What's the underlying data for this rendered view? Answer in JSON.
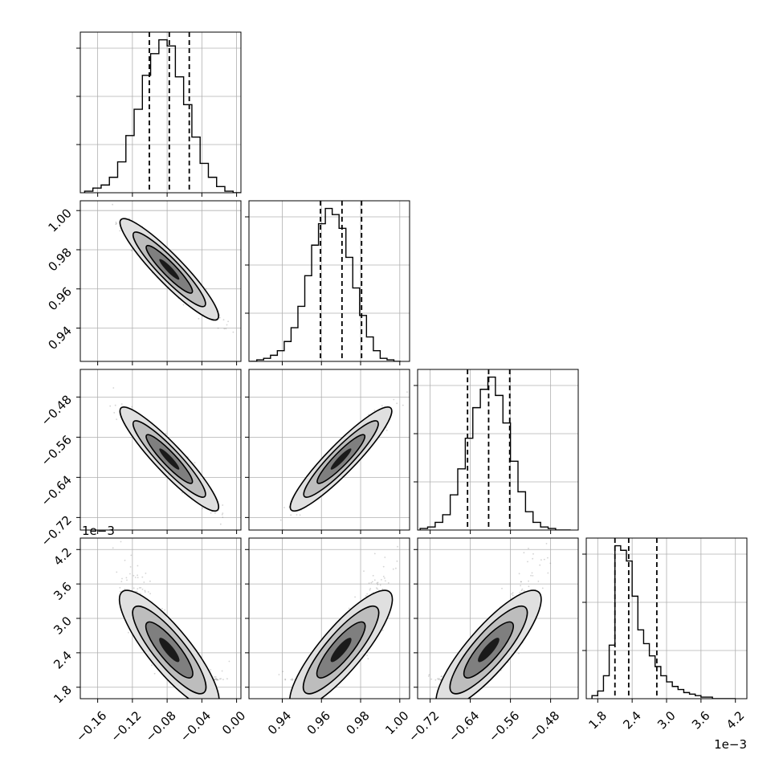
{
  "chart_data": {
    "type": "corner",
    "parameters": [
      {
        "index": 0,
        "range": [
          -0.18,
          0.005
        ],
        "ticks": [
          -0.16,
          -0.12,
          -0.08,
          -0.04,
          0.0
        ],
        "tick_labels": [
          "−0.16",
          "−0.12",
          "−0.08",
          "−0.04",
          "0.00"
        ],
        "offset_text": "",
        "quantiles": [
          -0.1005,
          -0.0775,
          -0.0545
        ],
        "hist_bins": [
          -0.175,
          -0.1655,
          -0.156,
          -0.1465,
          -0.137,
          -0.1275,
          -0.118,
          -0.1085,
          -0.099,
          -0.0895,
          -0.08,
          -0.0705,
          -0.061,
          -0.0515,
          -0.042,
          -0.0325,
          -0.023,
          -0.0135,
          -0.004,
          0.0055
        ],
        "hist_counts": [
          0.01,
          0.03,
          0.05,
          0.1,
          0.2,
          0.37,
          0.54,
          0.76,
          0.9,
          0.99,
          0.95,
          0.75,
          0.57,
          0.36,
          0.19,
          0.1,
          0.04,
          0.01,
          0.0
        ]
      },
      {
        "index": 1,
        "range": [
          0.923,
          1.005
        ],
        "ticks": [
          0.94,
          0.96,
          0.98,
          1.0
        ],
        "tick_labels": [
          "0.94",
          "0.96",
          "0.98",
          "1.00"
        ],
        "offset_text": "",
        "quantiles": [
          0.9595,
          0.9705,
          0.9805
        ],
        "hist_bins": [
          0.9235,
          0.927,
          0.9305,
          0.934,
          0.9375,
          0.941,
          0.9445,
          0.948,
          0.9515,
          0.955,
          0.9585,
          0.962,
          0.9655,
          0.969,
          0.9725,
          0.976,
          0.9795,
          0.983,
          0.9865,
          0.99,
          0.9935,
          0.997,
          1.0005
        ],
        "hist_counts": [
          0.0,
          0.01,
          0.02,
          0.04,
          0.07,
          0.13,
          0.22,
          0.36,
          0.56,
          0.76,
          0.9,
          1.0,
          0.96,
          0.87,
          0.68,
          0.48,
          0.3,
          0.16,
          0.07,
          0.02,
          0.01,
          0.0
        ]
      },
      {
        "index": 2,
        "range": [
          -0.745,
          -0.425
        ],
        "ticks": [
          -0.72,
          -0.64,
          -0.56,
          -0.48
        ],
        "tick_labels": [
          "−0.72",
          "−0.64",
          "−0.56",
          "−0.48"
        ],
        "offset_text": "",
        "quantiles": [
          -0.6455,
          -0.6035,
          -0.5615
        ],
        "hist_bins": [
          -0.74,
          -0.725,
          -0.71,
          -0.695,
          -0.68,
          -0.665,
          -0.65,
          -0.635,
          -0.62,
          -0.605,
          -0.59,
          -0.575,
          -0.56,
          -0.545,
          -0.53,
          -0.515,
          -0.5,
          -0.485,
          -0.47,
          -0.455,
          -0.44
        ],
        "hist_counts": [
          0.01,
          0.02,
          0.05,
          0.1,
          0.23,
          0.4,
          0.6,
          0.8,
          0.92,
          1.0,
          0.88,
          0.7,
          0.45,
          0.25,
          0.12,
          0.05,
          0.02,
          0.01,
          0.0,
          0.0
        ]
      },
      {
        "index": 3,
        "range": [
          1.6,
          4.4
        ],
        "ticks": [
          1.8,
          2.4,
          3.0,
          3.6,
          4.2
        ],
        "tick_labels": [
          "1.8",
          "2.4",
          "3.0",
          "3.6",
          "4.2"
        ],
        "offset_text": "1e−3",
        "quantiles": [
          2.1,
          2.34,
          2.83
        ],
        "hist_bins": [
          1.7,
          1.8,
          1.9,
          2.0,
          2.1,
          2.2,
          2.3,
          2.4,
          2.5,
          2.6,
          2.7,
          2.8,
          2.9,
          3.0,
          3.1,
          3.2,
          3.3,
          3.4,
          3.5,
          3.6,
          3.7,
          3.8,
          3.9,
          4.0,
          4.1,
          4.2
        ],
        "hist_counts": [
          0.02,
          0.05,
          0.15,
          0.35,
          1.0,
          0.97,
          0.9,
          0.67,
          0.45,
          0.36,
          0.28,
          0.21,
          0.15,
          0.11,
          0.08,
          0.06,
          0.04,
          0.03,
          0.02,
          0.01,
          0.01,
          0.0,
          0.0,
          0.0,
          0.0
        ]
      }
    ],
    "correlations": [
      {
        "x": 0,
        "y": 1,
        "mean": [
          -0.0775,
          0.97
        ],
        "std": [
          0.023,
          0.0105
        ],
        "corr": -0.95
      },
      {
        "x": 0,
        "y": 2,
        "mean": [
          -0.0775,
          -0.6035
        ],
        "std": [
          0.023,
          0.042
        ],
        "corr": -0.95
      },
      {
        "x": 1,
        "y": 2,
        "mean": [
          0.97,
          -0.6035
        ],
        "std": [
          0.0105,
          0.042
        ],
        "corr": 0.95
      },
      {
        "x": 0,
        "y": 3,
        "mean": [
          -0.0775,
          2.45
        ],
        "std": [
          0.023,
          0.42
        ],
        "corr": -0.9
      },
      {
        "x": 1,
        "y": 3,
        "mean": [
          0.97,
          2.45
        ],
        "std": [
          0.0105,
          0.42
        ],
        "corr": 0.9
      },
      {
        "x": 2,
        "y": 3,
        "mean": [
          -0.6035,
          2.45
        ],
        "std": [
          0.042,
          0.42
        ],
        "corr": 0.9
      }
    ],
    "grid": true,
    "colors": {
      "hist": "#000000",
      "grid": "#b0b0b0",
      "points": "#808080",
      "contour_dark": "#1a1a1a",
      "contour_mid": "#7f7f7f",
      "contour_light": "#e0e0e0"
    }
  }
}
